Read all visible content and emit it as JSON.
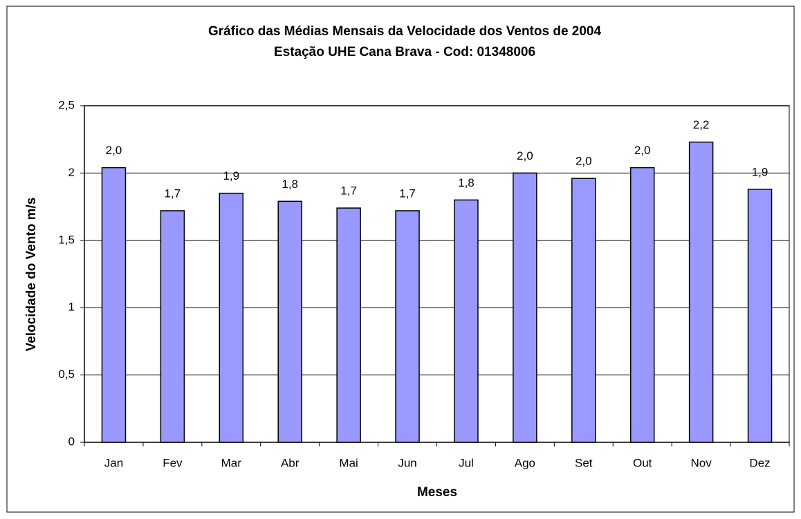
{
  "chart_data": {
    "type": "bar",
    "title": "Gráfico das Médias  Mensais  da Velocidade dos Ventos de 2004",
    "subtitle": "Estação UHE Cana Brava - Cod: 01348006",
    "x_label": "Meses",
    "y_label": "Velocidade do Vento m/s",
    "categories": [
      "Jan",
      "Fev",
      "Mar",
      "Abr",
      "Mai",
      "Jun",
      "Jul",
      "Ago",
      "Set",
      "Out",
      "Nov",
      "Dez"
    ],
    "values": [
      2.04,
      1.72,
      1.85,
      1.79,
      1.74,
      1.72,
      1.8,
      2.0,
      1.96,
      2.04,
      2.23,
      1.88
    ],
    "value_labels": [
      "2,0",
      "1,7",
      "1,9",
      "1,8",
      "1,7",
      "1,7",
      "1,8",
      "2,0",
      "2,0",
      "2,0",
      "2,2",
      "1,9"
    ],
    "color": "#9999ff",
    "ylim": [
      0,
      2.5
    ],
    "yticks": [
      0,
      {
        "value": 0.5,
        "label": "0,5"
      },
      1,
      {
        "value": 1.5,
        "label": "1,5"
      },
      2,
      {
        "value": 2.5,
        "label": "2,5"
      }
    ],
    "grid": true
  }
}
